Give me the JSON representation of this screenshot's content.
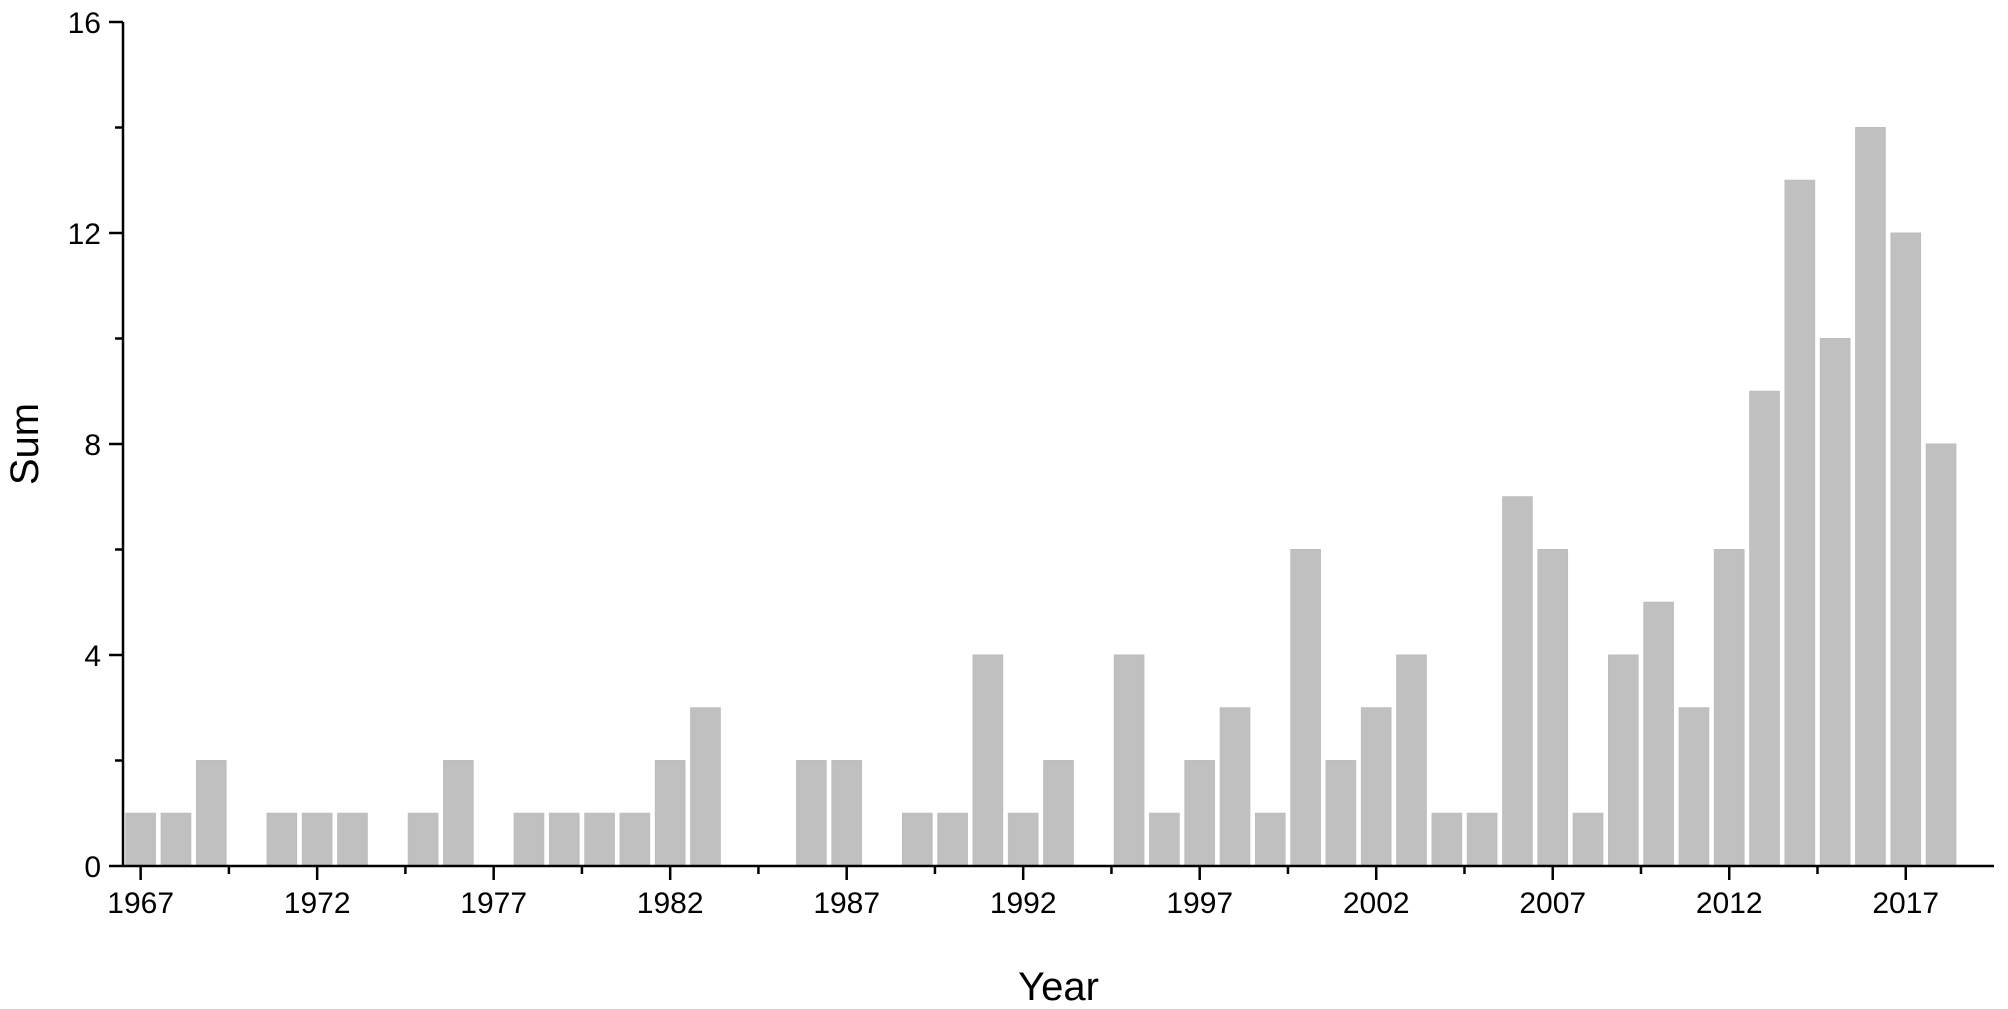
{
  "chart_data": {
    "type": "bar",
    "title": "",
    "xlabel": "Year",
    "ylabel": "Sum",
    "xlim": [
      1966.5,
      2019.5
    ],
    "ylim": [
      0,
      16
    ],
    "x_ticks": [
      1967,
      1972,
      1977,
      1982,
      1987,
      1992,
      1997,
      2002,
      2007,
      2012,
      2017
    ],
    "x_tick_labels": [
      "1967",
      "1972",
      "1977",
      "1982",
      "1987",
      "1992",
      "1997",
      "2002",
      "2007",
      "2012",
      "2017"
    ],
    "y_ticks": [
      0,
      4,
      8,
      12,
      16
    ],
    "y_tick_labels": [
      "0",
      "4",
      "8",
      "12",
      "16"
    ],
    "grid": false,
    "legend": "none",
    "bar_color": "#c0c0c0",
    "categories": [
      1967,
      1968,
      1969,
      1970,
      1971,
      1972,
      1973,
      1974,
      1975,
      1976,
      1977,
      1978,
      1979,
      1980,
      1981,
      1982,
      1983,
      1984,
      1985,
      1986,
      1987,
      1988,
      1989,
      1990,
      1991,
      1992,
      1993,
      1994,
      1995,
      1996,
      1997,
      1998,
      1999,
      2000,
      2001,
      2002,
      2003,
      2004,
      2005,
      2006,
      2007,
      2008,
      2009,
      2010,
      2011,
      2012,
      2013,
      2014,
      2015,
      2016,
      2017,
      2018
    ],
    "values": [
      1,
      1,
      2,
      0,
      1,
      1,
      1,
      0,
      1,
      2,
      0,
      1,
      1,
      1,
      1,
      2,
      3,
      0,
      0,
      2,
      2,
      0,
      1,
      1,
      4,
      1,
      2,
      0,
      4,
      1,
      2,
      3,
      1,
      6,
      2,
      3,
      4,
      1,
      1,
      7,
      6,
      1,
      4,
      5,
      3,
      6,
      9,
      13,
      10,
      14,
      12,
      8
    ]
  }
}
